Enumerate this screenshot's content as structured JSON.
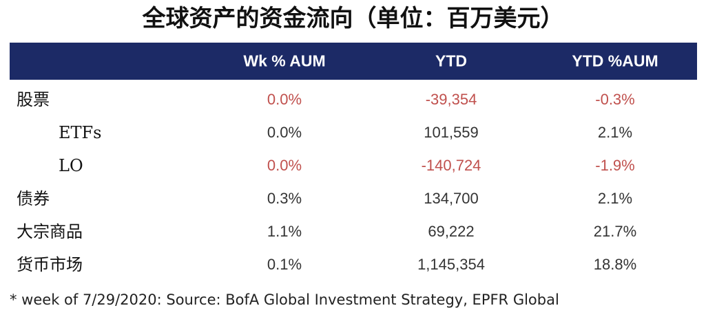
{
  "title": "全球资产的资金流向（单位：百万美元）",
  "table": {
    "header": [
      "Wk % AUM",
      "YTD",
      "YTD %AUM"
    ],
    "rows": [
      {
        "label": "股票",
        "cells": [
          "0.0%",
          "-39,354",
          "-0.3%"
        ],
        "color": "#c0504d",
        "children": [
          {
            "label": "ETFs",
            "cells": [
              "0.0%",
              "101,559",
              "2.1%"
            ]
          },
          {
            "label": "LO",
            "cells": [
              "0.0%",
              "-140,724",
              "-1.9%"
            ],
            "color": "#c0504d"
          }
        ]
      },
      {
        "label": "债券",
        "cells": [
          "0.3%",
          "134,700",
          "2.1%"
        ]
      },
      {
        "label": "大宗商品",
        "cells": [
          "1.1%",
          "69,222",
          "21.7%"
        ]
      },
      {
        "label": "货币市场",
        "cells": [
          "0.1%",
          "1,145,354",
          "18.8%"
        ]
      }
    ]
  },
  "footnote": "* week of 7/29/2020: Source: BofA Global Investment Strategy, EPFR Global"
}
